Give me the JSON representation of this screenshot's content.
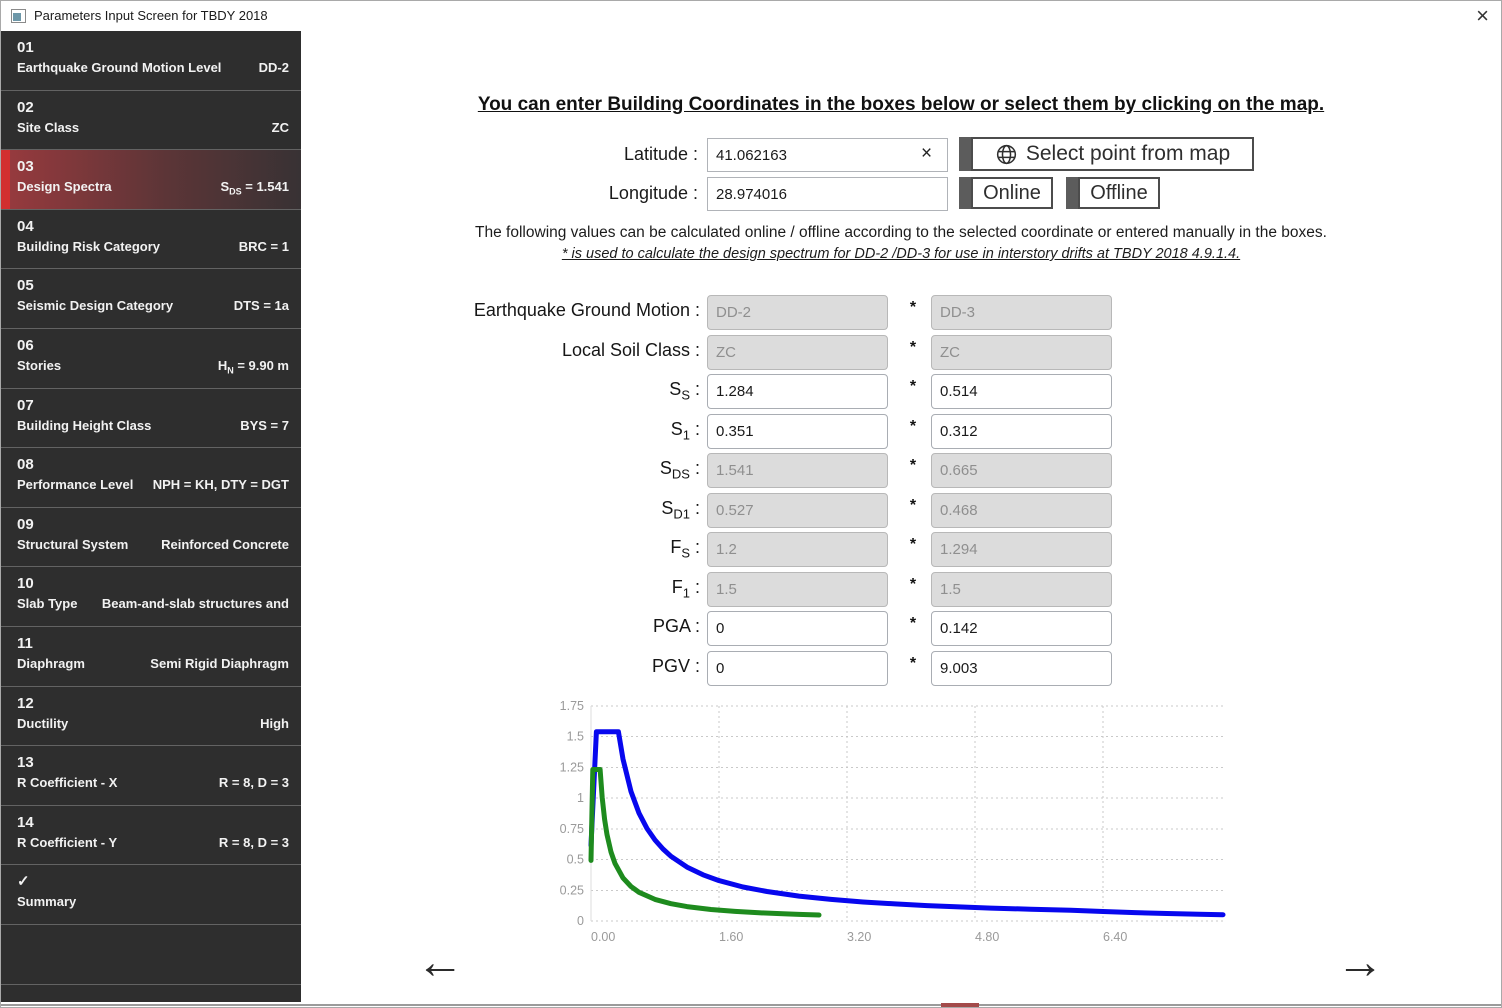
{
  "window": {
    "title": "Parameters Input Screen for TBDY 2018",
    "close_glyph": "×"
  },
  "sidebar": {
    "items": [
      {
        "id": "01",
        "num": "01",
        "label": "Earthquake Ground Motion Level",
        "value": "DD-2",
        "selected": false
      },
      {
        "id": "02",
        "num": "02",
        "label": "Site Class",
        "value": "ZC",
        "selected": false
      },
      {
        "id": "03",
        "num": "03",
        "label": "Design Spectra",
        "value": "S_{DS} = 1.541",
        "selected": true
      },
      {
        "id": "04",
        "num": "04",
        "label": "Building Risk Category",
        "value": "BRC = 1",
        "selected": false
      },
      {
        "id": "05",
        "num": "05",
        "label": "Seismic Design Category",
        "value": "DTS = 1a",
        "selected": false
      },
      {
        "id": "06",
        "num": "06",
        "label": "Stories",
        "value": "H_{N} = 9.90 m",
        "selected": false
      },
      {
        "id": "07",
        "num": "07",
        "label": "Building Height Class",
        "value": "BYS = 7",
        "selected": false
      },
      {
        "id": "08",
        "num": "08",
        "label": "Performance Level",
        "value": "NPH = KH, DTY = DGT",
        "selected": false
      },
      {
        "id": "09",
        "num": "09",
        "label": "Structural System",
        "value": "Reinforced Concrete",
        "selected": false
      },
      {
        "id": "10",
        "num": "10",
        "label": "Slab Type",
        "value": "Beam-and-slab structures and",
        "selected": false
      },
      {
        "id": "11",
        "num": "11",
        "label": "Diaphragm",
        "value": "Semi Rigid Diaphragm",
        "selected": false
      },
      {
        "id": "12",
        "num": "12",
        "label": "Ductility",
        "value": "High",
        "selected": false
      },
      {
        "id": "13",
        "num": "13",
        "label": "R Coefficient - X",
        "value": "R = 8, D = 3",
        "selected": false
      },
      {
        "id": "14",
        "num": "14",
        "label": "R Coefficient - Y",
        "value": "R = 8, D = 3",
        "selected": false
      },
      {
        "id": "summary",
        "num": "✓",
        "label": "Summary",
        "value": "",
        "selected": false
      }
    ]
  },
  "header": {
    "heading": "You can enter Building Coordinates in the boxes below or select them by clicking on the map."
  },
  "coords": {
    "lat_label": "Latitude :",
    "lat_value": "41.062163",
    "clear_glyph": "×",
    "lon_label": "Longitude :",
    "lon_value": "28.974016",
    "select_map_label": "Select point from map",
    "online_label": "Online",
    "offline_label": "Offline"
  },
  "notes": {
    "line1": "The following values can be calculated online / offline according to the selected coordinate or entered manually in the boxes.",
    "line2": "* is used to calculate the design spectrum for DD-2 /DD-3 for use in interstory drifts at TBDY 2018 4.9.1.4."
  },
  "params": {
    "star": "*",
    "rows": [
      {
        "label": "Earthquake Ground Motion :",
        "v1": "DD-2",
        "v2": "DD-3",
        "d1": true,
        "d2": true
      },
      {
        "label": "Local Soil Class :",
        "v1": "ZC",
        "v2": "ZC",
        "d1": true,
        "d2": true
      },
      {
        "label": "S_{S} :",
        "v1": "1.284",
        "v2": "0.514",
        "d1": false,
        "d2": false
      },
      {
        "label": "S_{1} :",
        "v1": "0.351",
        "v2": "0.312",
        "d1": false,
        "d2": false
      },
      {
        "label": "S_{DS} :",
        "v1": "1.541",
        "v2": "0.665",
        "d1": true,
        "d2": true
      },
      {
        "label": "S_{D1} :",
        "v1": "0.527",
        "v2": "0.468",
        "d1": true,
        "d2": true
      },
      {
        "label": "F_{S} :",
        "v1": "1.2",
        "v2": "1.294",
        "d1": true,
        "d2": true
      },
      {
        "label": "F_{1} :",
        "v1": "1.5",
        "v2": "1.5",
        "d1": true,
        "d2": true
      },
      {
        "label": "PGA :",
        "v1": "0",
        "v2": "0.142",
        "d1": false,
        "d2": false
      },
      {
        "label": "PGV :",
        "v1": "0",
        "v2": "9.003",
        "d1": false,
        "d2": false
      }
    ]
  },
  "chart_data": {
    "type": "line",
    "title": "",
    "xlabel": "",
    "ylabel": "",
    "xlim": [
      0,
      7.9
    ],
    "ylim": [
      0,
      1.75
    ],
    "grid": true,
    "legend": false,
    "x_ticks": [
      {
        "v": 0.0,
        "label": "0.00"
      },
      {
        "v": 1.6,
        "label": "1.60"
      },
      {
        "v": 3.2,
        "label": "3.20"
      },
      {
        "v": 4.8,
        "label": "4.80"
      },
      {
        "v": 6.4,
        "label": "6.40"
      }
    ],
    "y_ticks": [
      {
        "v": 0,
        "label": "0"
      },
      {
        "v": 0.25,
        "label": "0.25"
      },
      {
        "v": 0.5,
        "label": "0.5"
      },
      {
        "v": 0.75,
        "label": "0.75"
      },
      {
        "v": 1,
        "label": "1"
      },
      {
        "v": 1.25,
        "label": "1.25"
      },
      {
        "v": 1.5,
        "label": "1.5"
      },
      {
        "v": 1.75,
        "label": "1.75"
      }
    ],
    "series": [
      {
        "name": "horizontal-elastic-design-spectrum-dd2",
        "color": "#0707ee",
        "points": [
          [
            0,
            0.616
          ],
          [
            0.068,
            1.541
          ],
          [
            0.342,
            1.541
          ],
          [
            0.4,
            1.318
          ],
          [
            0.5,
            1.054
          ],
          [
            0.6,
            0.878
          ],
          [
            0.7,
            0.753
          ],
          [
            0.8,
            0.659
          ],
          [
            0.9,
            0.586
          ],
          [
            1.0,
            0.527
          ],
          [
            1.2,
            0.439
          ],
          [
            1.4,
            0.376
          ],
          [
            1.6,
            0.329
          ],
          [
            1.9,
            0.277
          ],
          [
            2.2,
            0.24
          ],
          [
            2.6,
            0.203
          ],
          [
            3.0,
            0.176
          ],
          [
            3.4,
            0.155
          ],
          [
            3.8,
            0.139
          ],
          [
            4.2,
            0.125
          ],
          [
            4.6,
            0.115
          ],
          [
            5.0,
            0.105
          ],
          [
            5.5,
            0.096
          ],
          [
            6.0,
            0.088
          ],
          [
            6.4,
            0.077
          ],
          [
            6.8,
            0.068
          ],
          [
            7.2,
            0.061
          ],
          [
            7.6,
            0.055
          ],
          [
            7.9,
            0.051
          ]
        ]
      },
      {
        "name": "vertical-elastic-design-spectrum",
        "color": "#1e8b1e",
        "points": [
          [
            0,
            0.493
          ],
          [
            0.023,
            1.233
          ],
          [
            0.114,
            1.233
          ],
          [
            0.14,
            1.004
          ],
          [
            0.17,
            0.827
          ],
          [
            0.2,
            0.703
          ],
          [
            0.25,
            0.562
          ],
          [
            0.3,
            0.469
          ],
          [
            0.4,
            0.351
          ],
          [
            0.5,
            0.281
          ],
          [
            0.6,
            0.234
          ],
          [
            0.8,
            0.176
          ],
          [
            1.0,
            0.141
          ],
          [
            1.2,
            0.117
          ],
          [
            1.5,
            0.094
          ],
          [
            1.8,
            0.078
          ],
          [
            2.1,
            0.067
          ],
          [
            2.4,
            0.059
          ],
          [
            2.6,
            0.054
          ],
          [
            2.85,
            0.049
          ]
        ]
      }
    ]
  },
  "nav": {
    "prev": "←",
    "next": "→"
  }
}
